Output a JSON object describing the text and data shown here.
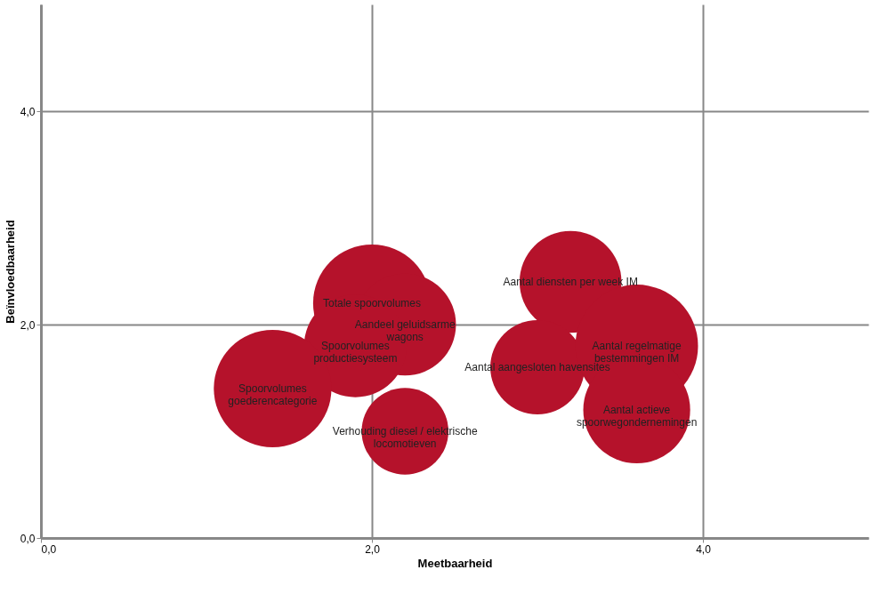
{
  "chart_data": {
    "type": "bubble",
    "xlabel": "Meetbaarheid",
    "ylabel": "Beïnvloedbaarheid",
    "x": [
      2.0,
      2.2,
      1.9,
      1.4,
      2.2,
      3.2,
      3.0,
      3.6,
      3.6
    ],
    "series": [
      {
        "color": "#b5122b",
        "values": [
          2.2,
          2.0,
          1.8,
          1.4,
          1.0,
          2.4,
          1.6,
          1.8,
          1.2
        ],
        "sizes": [
          0.92,
          0.69,
          0.7,
          0.92,
          0.5,
          0.69,
          0.59,
          1,
          0.76
        ]
      }
    ],
    "xlim": [
      0,
      5
    ],
    "ylim": [
      0,
      5
    ],
    "xticks": [
      {
        "value": 0,
        "label": "0,0"
      },
      {
        "value": 2,
        "label": "2,0"
      },
      {
        "value": 4,
        "label": "4,0"
      }
    ],
    "yticks": [
      {
        "value": 0,
        "label": "0,0"
      },
      {
        "value": 2,
        "label": "2,0"
      },
      {
        "value": 4,
        "label": "4,0"
      }
    ],
    "grid": true,
    "annotations": [
      {
        "text": "Totale spoorvolumes",
        "x": 2.0,
        "y": 2.2
      },
      {
        "text": "Aandeel geluidsarme\nwagons",
        "x": 2.2,
        "y": 2.0
      },
      {
        "text": "Spoorvolumes\nproductiesysteem",
        "x": 1.9,
        "y": 1.8
      },
      {
        "text": "Spoorvolumes\ngoederencategorie",
        "x": 1.4,
        "y": 1.4
      },
      {
        "text": "Verhouding diesel / elektrische\nlocomotieven",
        "x": 2.2,
        "y": 1.0
      },
      {
        "text": "Aantal diensten per week IM",
        "x": 3.2,
        "y": 2.4
      },
      {
        "text": "Aantal aangesloten havensites",
        "x": 3.0,
        "y": 1.6
      },
      {
        "text": "Aantal regelmatige\nbestemmingen IM",
        "x": 3.6,
        "y": 1.8
      },
      {
        "text": "Aantal actieve\nspoorwegondernemingen",
        "x": 3.6,
        "y": 1.2
      }
    ]
  }
}
